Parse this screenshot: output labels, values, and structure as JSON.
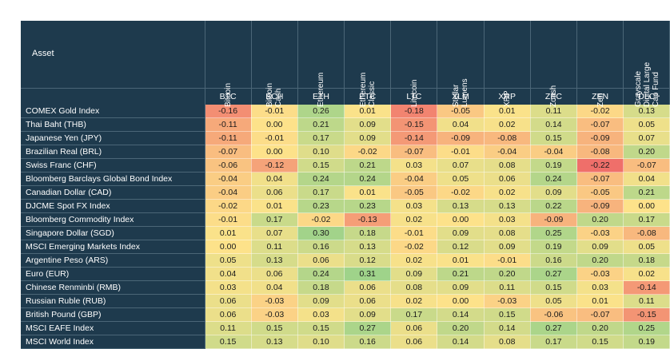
{
  "chart_data": {
    "type": "heatmap",
    "corner_label": "Asset",
    "columns": [
      {
        "name": "Bitcoin",
        "symbol": "BTC"
      },
      {
        "name": "Bitcoin\nCash",
        "symbol": "BCH"
      },
      {
        "name": "Ethereum",
        "symbol": "ETH"
      },
      {
        "name": "Ethereum\nClassic",
        "symbol": "ETC"
      },
      {
        "name": "Litecoin",
        "symbol": "LTC"
      },
      {
        "name": "Stellar\nLumens",
        "symbol": "XLM"
      },
      {
        "name": "XRP",
        "symbol": "XRP"
      },
      {
        "name": "Zcash",
        "symbol": "ZEC"
      },
      {
        "name": "Zen",
        "symbol": "ZEN"
      },
      {
        "name": "Grayscale\nDigital Large\nCap Fund",
        "symbol": "\"DLC\""
      }
    ],
    "rows": [
      {
        "asset": "COMEX Gold Index",
        "values": [
          -0.16,
          -0.01,
          0.26,
          0.01,
          -0.18,
          -0.05,
          0.01,
          0.11,
          -0.02,
          0.13
        ]
      },
      {
        "asset": "Thai Baht (THB)",
        "values": [
          -0.11,
          0.0,
          0.21,
          0.09,
          -0.15,
          0.04,
          0.02,
          0.14,
          -0.07,
          0.05
        ]
      },
      {
        "asset": "Japanese Yen (JPY)",
        "values": [
          -0.11,
          -0.01,
          0.17,
          0.09,
          -0.14,
          -0.09,
          -0.08,
          0.15,
          -0.09,
          0.07
        ]
      },
      {
        "asset": "Brazilian Real (BRL)",
        "values": [
          -0.07,
          0.0,
          0.1,
          -0.02,
          -0.07,
          -0.01,
          -0.04,
          -0.04,
          -0.08,
          0.2
        ]
      },
      {
        "asset": "Swiss Franc (CHF)",
        "values": [
          -0.06,
          -0.12,
          0.15,
          0.21,
          0.03,
          0.07,
          0.08,
          0.19,
          -0.22,
          -0.07
        ]
      },
      {
        "asset": "Bloomberg Barclays Global Bond Index",
        "values": [
          -0.04,
          0.04,
          0.24,
          0.24,
          -0.04,
          0.05,
          0.06,
          0.24,
          -0.07,
          0.04
        ]
      },
      {
        "asset": "Canadian Dollar (CAD)",
        "values": [
          -0.04,
          0.06,
          0.17,
          0.01,
          -0.05,
          -0.02,
          0.02,
          0.09,
          -0.05,
          0.21
        ]
      },
      {
        "asset": "DJCME Spot FX Index",
        "values": [
          -0.02,
          0.01,
          0.23,
          0.23,
          0.03,
          0.13,
          0.13,
          0.22,
          -0.09,
          0.0
        ]
      },
      {
        "asset": "Bloomberg Commodity Index",
        "values": [
          -0.01,
          0.17,
          -0.02,
          -0.13,
          0.02,
          0.0,
          0.03,
          -0.09,
          0.2,
          0.17
        ]
      },
      {
        "asset": "Singapore Dollar (SGD)",
        "values": [
          0.01,
          0.07,
          0.3,
          0.18,
          -0.01,
          0.09,
          0.08,
          0.25,
          -0.03,
          -0.08
        ]
      },
      {
        "asset": "MSCI Emerging Markets Index",
        "values": [
          0.0,
          0.11,
          0.16,
          0.13,
          -0.02,
          0.12,
          0.09,
          0.19,
          0.09,
          0.05
        ]
      },
      {
        "asset": "Argentine Peso (ARS)",
        "values": [
          0.05,
          0.13,
          0.06,
          0.12,
          0.02,
          0.01,
          -0.01,
          0.16,
          0.2,
          0.18
        ]
      },
      {
        "asset": "Euro (EUR)",
        "values": [
          0.04,
          0.06,
          0.24,
          0.31,
          0.09,
          0.21,
          0.2,
          0.27,
          -0.03,
          0.02
        ]
      },
      {
        "asset": "Chinese Renminbi (RMB)",
        "values": [
          0.03,
          0.04,
          0.18,
          0.06,
          0.08,
          0.09,
          0.11,
          0.15,
          0.03,
          -0.14
        ]
      },
      {
        "asset": "Russian Ruble (RUB)",
        "values": [
          0.06,
          -0.03,
          0.09,
          0.06,
          0.02,
          0.0,
          -0.03,
          0.05,
          0.01,
          0.11
        ]
      },
      {
        "asset": "British Pound (GBP)",
        "values": [
          0.06,
          -0.03,
          0.03,
          0.09,
          0.17,
          0.14,
          0.15,
          -0.06,
          -0.07,
          -0.15
        ]
      },
      {
        "asset": "MSCI EAFE Index",
        "values": [
          0.11,
          0.15,
          0.15,
          0.27,
          0.06,
          0.2,
          0.14,
          0.27,
          0.2,
          0.25
        ]
      },
      {
        "asset": "MSCI World Index",
        "values": [
          0.15,
          0.13,
          0.1,
          0.16,
          0.06,
          0.14,
          0.08,
          0.17,
          0.15,
          0.19
        ]
      }
    ],
    "color_scale": {
      "low": "#ef6f6a",
      "mid": "#fde28a",
      "high": "#9fd38a",
      "range": [
        -0.22,
        0.31
      ]
    }
  }
}
